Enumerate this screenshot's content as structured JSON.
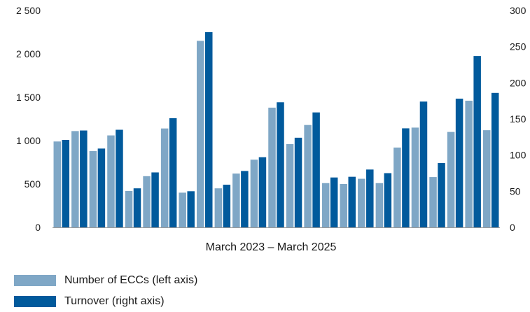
{
  "chart_data": {
    "type": "bar",
    "xlabel": "March 2023 – March 2025",
    "y_left": {
      "ticks": [
        "0",
        "500",
        "1 000",
        "1 500",
        "2 000",
        "2 500"
      ],
      "range": [
        0,
        2500
      ]
    },
    "y_right": {
      "ticks": [
        "0",
        "50",
        "100",
        "150",
        "200",
        "250",
        "300"
      ],
      "range": [
        0,
        300
      ]
    },
    "grid": false,
    "legend_position": "bottom-left",
    "series": [
      {
        "name": "Number of ECCs (left axis)",
        "axis": "left",
        "color": "#7fa7c6",
        "values": [
          990,
          1110,
          880,
          1060,
          420,
          590,
          1140,
          400,
          2150,
          450,
          620,
          780,
          1380,
          960,
          1180,
          510,
          500,
          560,
          510,
          920,
          1150,
          580,
          1100,
          1460,
          1120
        ]
      },
      {
        "name": "Turnover (right axis)",
        "axis": "right",
        "color": "#015a9c",
        "values": [
          121,
          134,
          109,
          135,
          54,
          76,
          151,
          50,
          270,
          59,
          78,
          97,
          173,
          124,
          159,
          69,
          70,
          80,
          75,
          137,
          174,
          89,
          178,
          237,
          186
        ]
      }
    ]
  }
}
